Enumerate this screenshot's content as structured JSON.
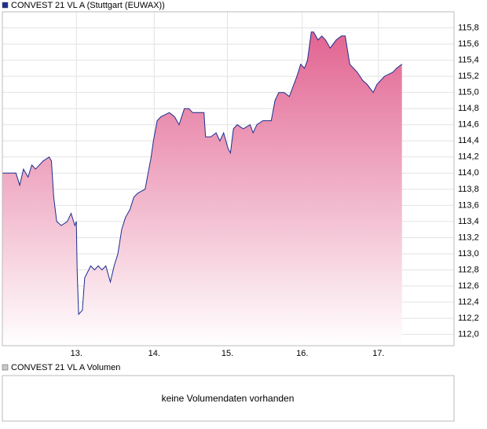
{
  "chart_data": {
    "type": "line",
    "legend": "CONVEST 21 VL A (Stuttgart (EUWAX))",
    "series": [
      {
        "name": "CONVEST 21 VL A (Stuttgart (EUWAX))",
        "color": "#1c2d8f",
        "fill_top": "#e05a8a",
        "fill_bottom": "#ffffff",
        "x": [
          12.02,
          12.2,
          12.25,
          12.3,
          12.36,
          12.41,
          12.46,
          12.56,
          12.64,
          12.67,
          12.7,
          12.74,
          12.8,
          12.88,
          12.93,
          12.98,
          13.0,
          13.01,
          13.03,
          13.08,
          13.11,
          13.19,
          13.24,
          13.29,
          13.34,
          13.39,
          13.45,
          13.5,
          13.55,
          13.6,
          13.65,
          13.71,
          13.76,
          13.81,
          13.91,
          13.99,
          14.02,
          14.07,
          14.12,
          14.23,
          14.3,
          14.36,
          14.43,
          14.49,
          14.54,
          14.69,
          14.71,
          14.78,
          14.85,
          14.9,
          14.95,
          15.01,
          15.04,
          15.08,
          15.13,
          15.21,
          15.3,
          15.34,
          15.39,
          15.47,
          15.58,
          15.63,
          15.68,
          15.75,
          15.82,
          15.86,
          15.92,
          15.97,
          16.02,
          16.06,
          16.11,
          16.14,
          16.2,
          16.25,
          16.3,
          16.36,
          16.44,
          16.51,
          16.56,
          16.62,
          16.72,
          16.79,
          16.85,
          16.93,
          16.98,
          17.08,
          17.19,
          17.24,
          17.31
        ],
        "values": [
          114.0,
          114.0,
          113.85,
          114.05,
          113.95,
          114.1,
          114.05,
          114.15,
          114.2,
          114.15,
          113.7,
          113.4,
          113.35,
          113.4,
          113.5,
          113.35,
          113.4,
          112.8,
          112.25,
          112.3,
          112.7,
          112.85,
          112.8,
          112.85,
          112.8,
          112.85,
          112.65,
          112.85,
          113.0,
          113.3,
          113.45,
          113.55,
          113.7,
          113.75,
          113.8,
          114.2,
          114.4,
          114.65,
          114.7,
          114.75,
          114.7,
          114.6,
          114.8,
          114.8,
          114.75,
          114.75,
          114.45,
          114.45,
          114.5,
          114.4,
          114.5,
          114.3,
          114.25,
          114.55,
          114.6,
          114.55,
          114.6,
          114.5,
          114.6,
          114.65,
          114.65,
          114.9,
          115.0,
          115.0,
          114.95,
          115.05,
          115.2,
          115.35,
          115.3,
          115.4,
          115.75,
          115.75,
          115.65,
          115.7,
          115.65,
          115.55,
          115.65,
          115.7,
          115.7,
          115.35,
          115.25,
          115.15,
          115.1,
          115.0,
          115.1,
          115.2,
          115.25,
          115.3,
          115.35
        ]
      }
    ],
    "xlim": [
      12.02,
      18.0
    ],
    "xticks": [
      {
        "value": 13,
        "label": "13."
      },
      {
        "value": 14.03,
        "label": "14."
      },
      {
        "value": 15.0,
        "label": "15."
      },
      {
        "value": 15.99,
        "label": "16."
      },
      {
        "value": 17.0,
        "label": "17."
      }
    ],
    "ylim": [
      111.86,
      116.0
    ],
    "yticks": [
      {
        "value": 112.0,
        "label": "112,0"
      },
      {
        "value": 112.2,
        "label": "112,2"
      },
      {
        "value": 112.4,
        "label": "112,4"
      },
      {
        "value": 112.6,
        "label": "112,6"
      },
      {
        "value": 112.8,
        "label": "112,8"
      },
      {
        "value": 113.0,
        "label": "113,0"
      },
      {
        "value": 113.2,
        "label": "113,2"
      },
      {
        "value": 113.4,
        "label": "113,4"
      },
      {
        "value": 113.6,
        "label": "113,6"
      },
      {
        "value": 113.8,
        "label": "113,8"
      },
      {
        "value": 114.0,
        "label": "114,0"
      },
      {
        "value": 114.2,
        "label": "114,2"
      },
      {
        "value": 114.4,
        "label": "114,4"
      },
      {
        "value": 114.6,
        "label": "114,6"
      },
      {
        "value": 114.8,
        "label": "114,8"
      },
      {
        "value": 115.0,
        "label": "115,0"
      },
      {
        "value": 115.2,
        "label": "115,2"
      },
      {
        "value": 115.4,
        "label": "115,4"
      },
      {
        "value": 115.6,
        "label": "115,6"
      },
      {
        "value": 115.8,
        "label": "115,8"
      }
    ],
    "grid": true
  },
  "volume_panel": {
    "legend": "CONVEST 21 VL A Volumen",
    "color": "#c8c8c8",
    "message": "keine Volumendaten vorhanden"
  }
}
